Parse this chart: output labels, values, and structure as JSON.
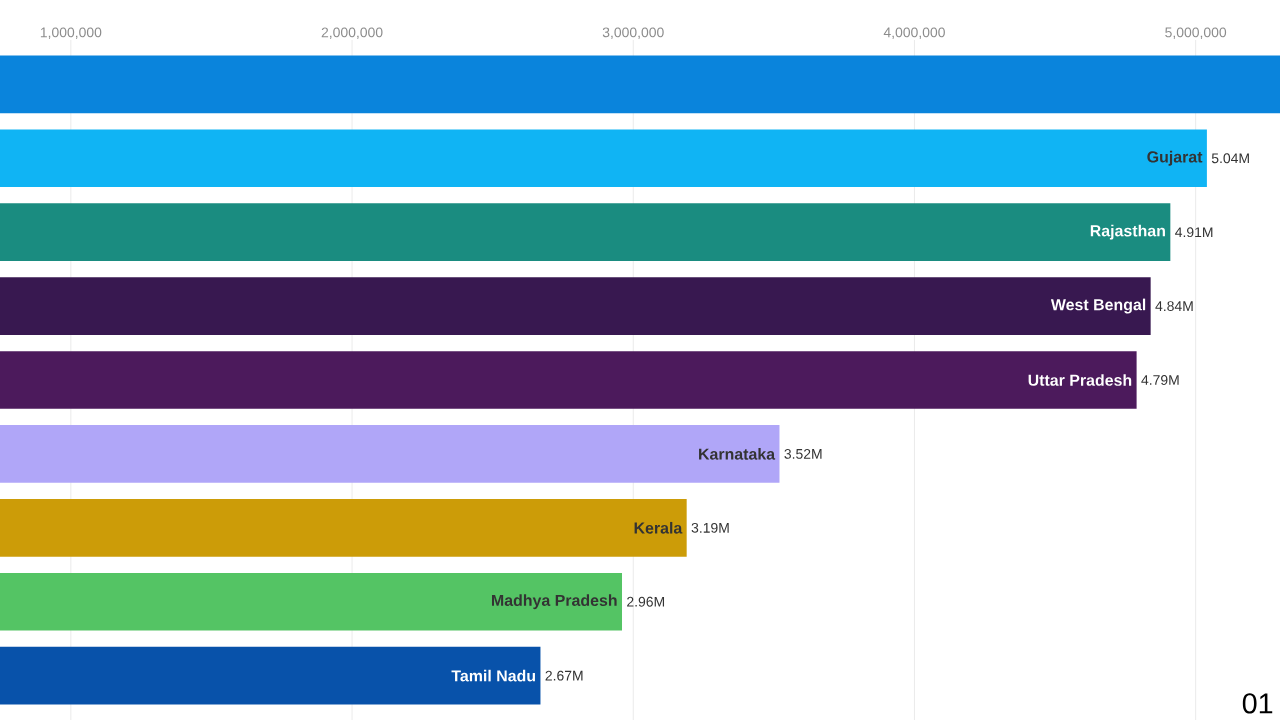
{
  "chart_data": {
    "type": "bar",
    "orientation": "horizontal",
    "categories": [
      null,
      "Gujarat",
      "Rajasthan",
      "West Bengal",
      "Uttar Pradesh",
      "Karnataka",
      "Kerala",
      "Madhya Pradesh",
      "Tamil Nadu"
    ],
    "values": [
      5300000,
      5040000,
      4910000,
      4840000,
      4790000,
      3520000,
      3190000,
      2960000,
      2670000
    ],
    "value_labels": [
      null,
      "5.04M",
      "4.91M",
      "4.84M",
      "4.79M",
      "3.52M",
      "3.19M",
      "2.96M",
      "2.67M"
    ],
    "colors": [
      "#0a84dc",
      "#10b4f4",
      "#1a8c80",
      "#381850",
      "#4c1a5c",
      "#b0a6f8",
      "#cc9c08",
      "#54c464",
      "#0852aa"
    ],
    "xlim": [
      748000,
      5300000
    ],
    "xticks": [
      {
        "value": 1000000,
        "label": "1,000,000"
      },
      {
        "value": 2000000,
        "label": "2,000,000"
      },
      {
        "value": 3000000,
        "label": "3,000,000"
      },
      {
        "value": 4000000,
        "label": "4,000,000"
      },
      {
        "value": 5000000,
        "label": "5,000,000"
      }
    ],
    "grid": "x",
    "annotations": [
      "01"
    ]
  }
}
